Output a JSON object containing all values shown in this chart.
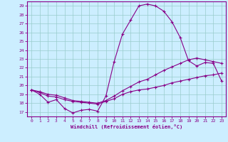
{
  "xlabel": "Windchill (Refroidissement éolien,°C)",
  "xlim": [
    -0.5,
    23.5
  ],
  "ylim": [
    16.5,
    29.5
  ],
  "yticks": [
    17,
    18,
    19,
    20,
    21,
    22,
    23,
    24,
    25,
    26,
    27,
    28,
    29
  ],
  "xticks": [
    0,
    1,
    2,
    3,
    4,
    5,
    6,
    7,
    8,
    9,
    10,
    11,
    12,
    13,
    14,
    15,
    16,
    17,
    18,
    19,
    20,
    21,
    22,
    23
  ],
  "background_color": "#cceeff",
  "line_color": "#880088",
  "grid_color": "#99cccc",
  "line1_x": [
    0,
    1,
    2,
    3,
    4,
    5,
    6,
    7,
    8,
    9,
    10,
    11,
    12,
    13,
    14,
    15,
    16,
    17,
    18,
    19,
    20,
    21,
    22,
    23
  ],
  "line1_y": [
    19.5,
    19.0,
    18.1,
    18.4,
    17.4,
    16.9,
    17.2,
    17.3,
    17.1,
    18.8,
    22.7,
    25.8,
    27.4,
    29.0,
    29.2,
    29.0,
    28.4,
    27.2,
    25.4,
    22.8,
    22.2,
    22.6,
    22.5,
    20.5
  ],
  "line2_x": [
    0,
    1,
    2,
    3,
    4,
    5,
    6,
    7,
    8,
    9,
    10,
    11,
    12,
    13,
    14,
    15,
    16,
    17,
    18,
    19,
    20,
    21,
    22,
    23
  ],
  "line2_y": [
    19.5,
    19.2,
    18.8,
    18.7,
    18.4,
    18.2,
    18.1,
    18.0,
    17.9,
    18.2,
    18.5,
    19.0,
    19.3,
    19.5,
    19.6,
    19.8,
    20.0,
    20.3,
    20.5,
    20.7,
    20.9,
    21.1,
    21.2,
    21.4
  ],
  "line3_x": [
    0,
    1,
    2,
    3,
    4,
    5,
    6,
    7,
    8,
    9,
    10,
    11,
    12,
    13,
    14,
    15,
    16,
    17,
    18,
    19,
    20,
    21,
    22,
    23
  ],
  "line3_y": [
    19.5,
    19.3,
    19.0,
    18.9,
    18.6,
    18.3,
    18.2,
    18.1,
    18.0,
    18.3,
    18.8,
    19.4,
    19.9,
    20.4,
    20.7,
    21.2,
    21.7,
    22.1,
    22.5,
    22.9,
    23.1,
    22.9,
    22.7,
    22.5
  ]
}
